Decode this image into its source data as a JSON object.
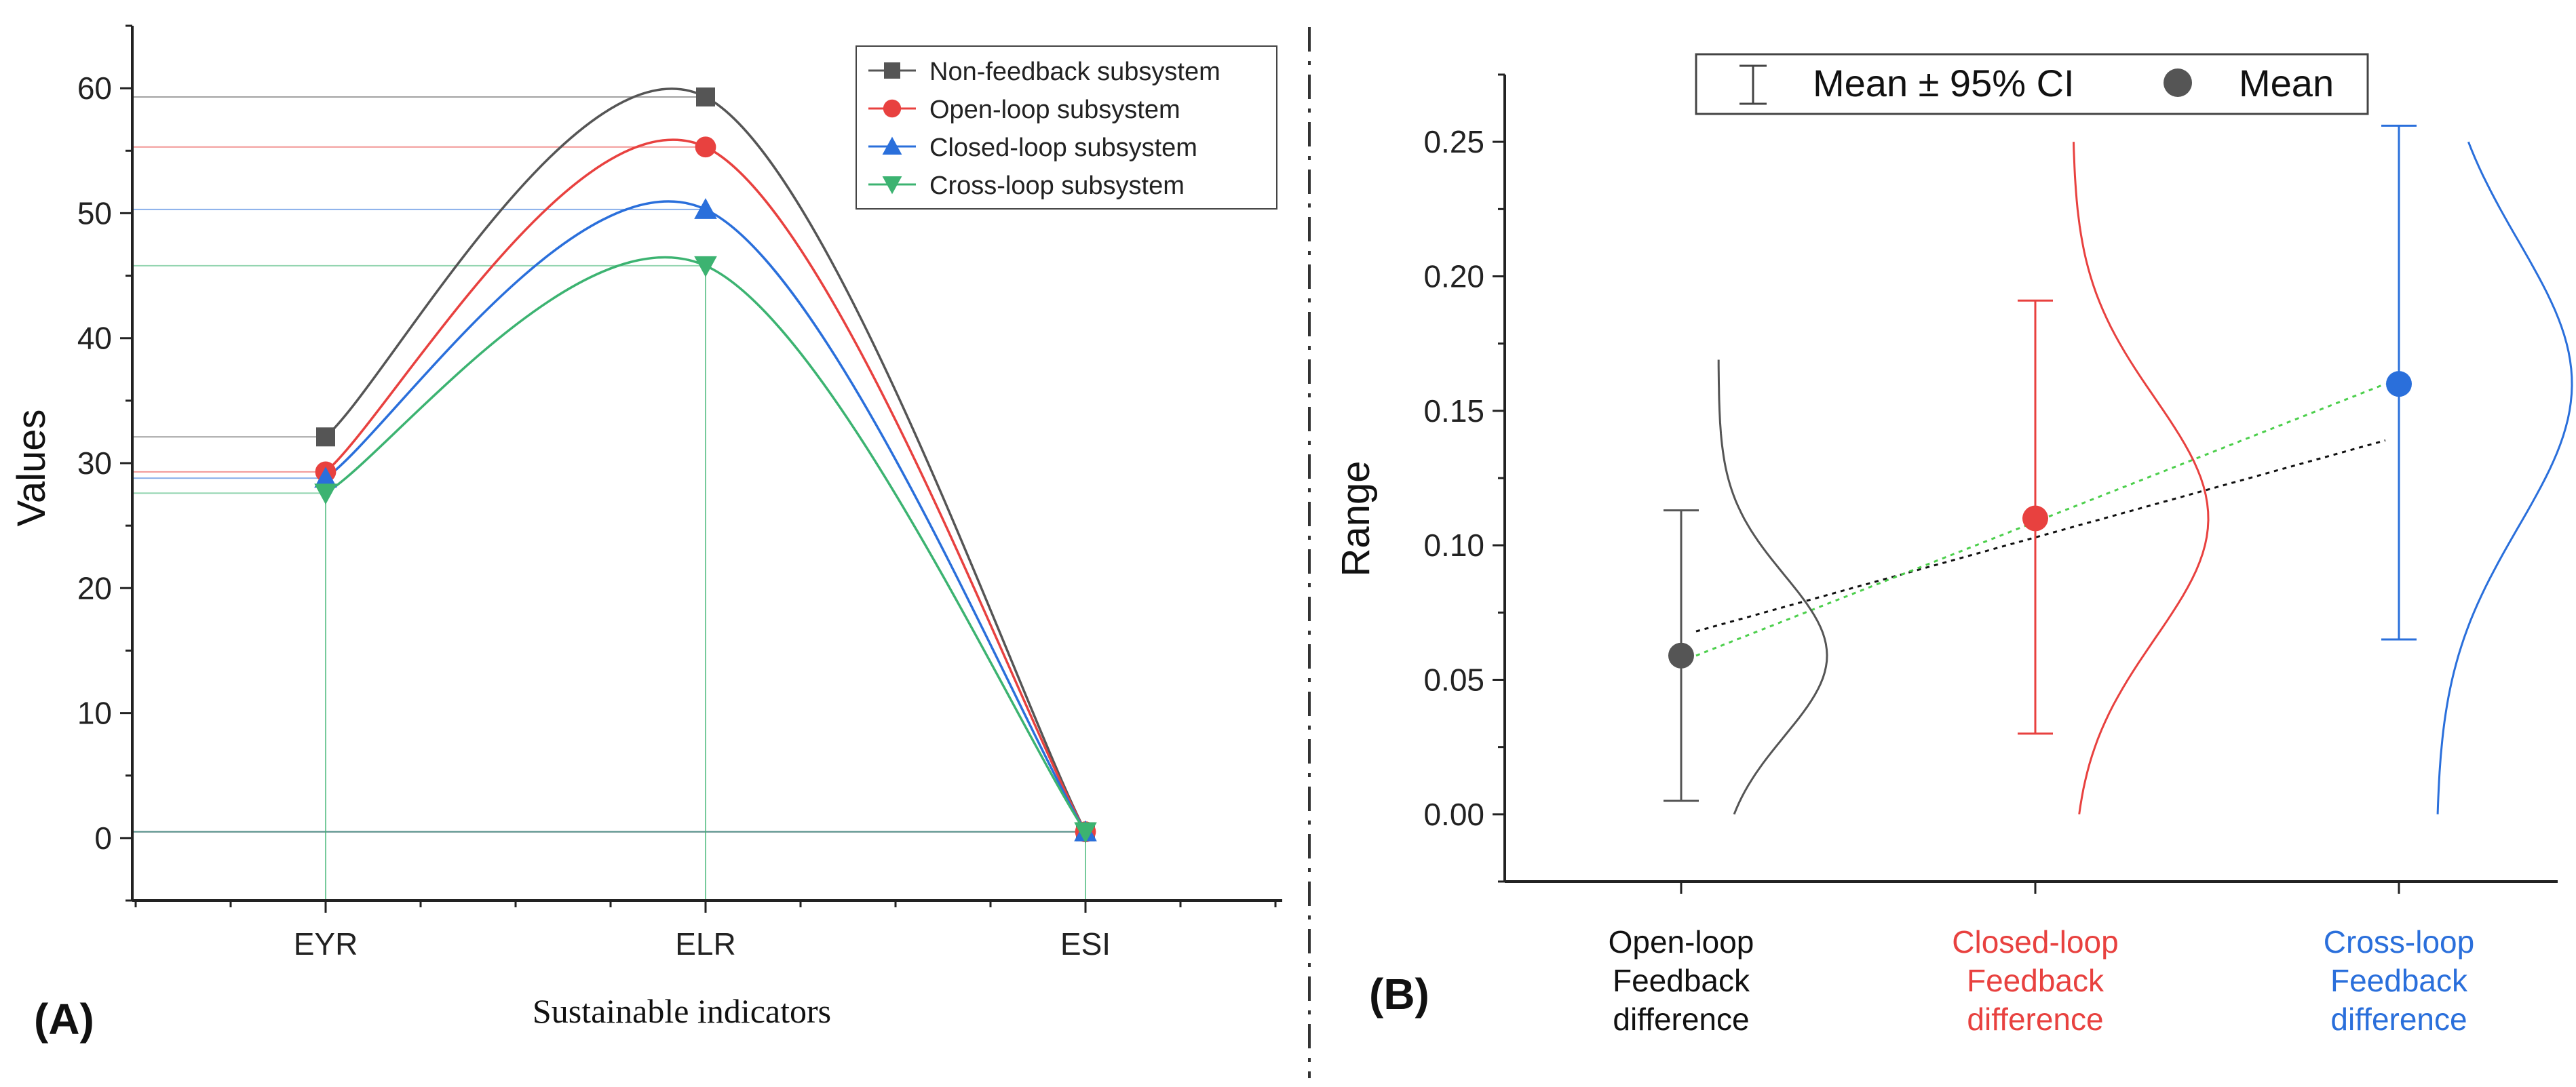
{
  "panel_labels": {
    "a": "(A)",
    "b": "(B)"
  },
  "chart_data": [
    {
      "type": "line",
      "panel": "(A)",
      "title": "",
      "xlabel": "Sustainable indicators",
      "ylabel": "Values",
      "categories": [
        "EYR",
        "ELR",
        "ESI"
      ],
      "ylim": [
        -5,
        65
      ],
      "yticks": [
        0,
        10,
        20,
        30,
        40,
        50,
        60
      ],
      "grid": false,
      "legend_position": "top-right",
      "series": [
        {
          "name": "Non-feedback subsystem",
          "values": [
            32.1,
            59.3,
            0.5
          ],
          "color": "#555555",
          "marker": "square"
        },
        {
          "name": "Open-loop subsystem",
          "values": [
            29.3,
            55.3,
            0.5
          ],
          "color": "#e8413f",
          "marker": "circle"
        },
        {
          "name": "Closed-loop subsystem",
          "values": [
            28.8,
            50.3,
            0.5
          ],
          "color": "#2a6fdb",
          "marker": "triangle-up"
        },
        {
          "name": "Cross-loop subsystem",
          "values": [
            27.6,
            45.8,
            0.5
          ],
          "color": "#3cb371",
          "marker": "triangle-down"
        }
      ]
    },
    {
      "type": "scatter",
      "panel": "(B)",
      "title": "",
      "xlabel": "",
      "ylabel": "Range",
      "ylim": [
        -0.025,
        0.275
      ],
      "yticks": [
        "0.00",
        "0.05",
        "0.10",
        "0.15",
        "0.20",
        "0.25"
      ],
      "legend": {
        "errorbar_label": "Mean ± 95% CI",
        "mean_label": "Mean",
        "position": "top"
      },
      "groups": [
        {
          "label_lines": [
            "Open-loop",
            "Feedback",
            "difference"
          ],
          "mean": 0.059,
          "ci_low": 0.005,
          "ci_high": 0.113,
          "color": "#555555",
          "label_color": "#111111",
          "dist_min": 0.0,
          "dist_max": 0.169
        },
        {
          "label_lines": [
            "Closed-loop",
            "Feedback",
            "difference"
          ],
          "mean": 0.11,
          "ci_low": 0.03,
          "ci_high": 0.191,
          "color": "#e8413f",
          "label_color": "#e8413f",
          "dist_min": 0.0,
          "dist_max": 0.25
        },
        {
          "label_lines": [
            "Cross-loop",
            "Feedback",
            "difference"
          ],
          "mean": 0.16,
          "ci_low": 0.065,
          "ci_high": 0.256,
          "color": "#2a6fdb",
          "label_color": "#2a6fdb",
          "dist_min": 0.0,
          "dist_max": 0.25
        }
      ],
      "trend_lines": [
        {
          "name": "linear-fit-black",
          "start": 0.068,
          "end": 0.139,
          "color": "#111111"
        },
        {
          "name": "linear-fit-green",
          "start": 0.059,
          "end": 0.16,
          "color": "#4ccf4c"
        }
      ]
    }
  ]
}
